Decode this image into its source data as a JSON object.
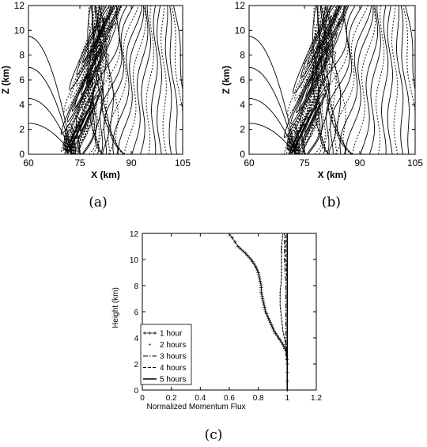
{
  "chart_data": [
    {
      "panel": "a",
      "type": "contour",
      "caption": "(a)",
      "xlabel": "X (km)",
      "ylabel": "Z (km)",
      "xlim": [
        60,
        105
      ],
      "ylim": [
        0,
        12
      ],
      "xticks": [
        "60",
        "75",
        "90",
        "105"
      ],
      "yticks": [
        "0",
        "2",
        "4",
        "6",
        "8",
        "10",
        "12"
      ],
      "xtick_values": [
        60,
        75,
        90,
        105
      ],
      "ytick_values": [
        0,
        2,
        4,
        6,
        8,
        10,
        12
      ],
      "source_x": 72,
      "positive_style": "solid",
      "negative_style": "dashed"
    },
    {
      "panel": "b",
      "type": "contour",
      "caption": "(b)",
      "xlabel": "X (km)",
      "ylabel": "Z (km)",
      "xlim": [
        60,
        105
      ],
      "ylim": [
        0,
        12
      ],
      "xticks": [
        "60",
        "75",
        "90",
        "105"
      ],
      "yticks": [
        "0",
        "2",
        "4",
        "6",
        "8",
        "10",
        "12"
      ],
      "xtick_values": [
        60,
        75,
        90,
        105
      ],
      "ytick_values": [
        0,
        2,
        4,
        6,
        8,
        10,
        12
      ],
      "source_x": 72,
      "positive_style": "solid",
      "negative_style": "dashed"
    },
    {
      "panel": "c",
      "type": "line",
      "caption": "(c)",
      "xlabel": "Normalized Momentum Flux",
      "ylabel": "Height (km)",
      "xlim": [
        0,
        1.2
      ],
      "ylim": [
        0,
        12
      ],
      "xticks": [
        "0",
        "0.2",
        "0.4",
        "0.6",
        "0.8",
        "1",
        "1.2"
      ],
      "yticks": [
        "0",
        "2",
        "4",
        "6",
        "8",
        "10",
        "12"
      ],
      "xtick_values": [
        0,
        0.2,
        0.4,
        0.6,
        0.8,
        1.0,
        1.2
      ],
      "ytick_values": [
        0,
        2,
        4,
        6,
        8,
        10,
        12
      ],
      "legend_position": "bottom-left",
      "series": [
        {
          "name": "1 hour",
          "style": "plus",
          "x": [
            1.0,
            1.0,
            0.99,
            0.97,
            0.94,
            0.91,
            0.89,
            0.87,
            0.85,
            0.84,
            0.83,
            0.82,
            0.82,
            0.81,
            0.8,
            0.78,
            0.75,
            0.71,
            0.66,
            0.6
          ],
          "y": [
            0.0,
            2.0,
            3.0,
            3.5,
            4.0,
            4.5,
            5.0,
            5.5,
            6.0,
            6.5,
            7.0,
            7.5,
            8.0,
            8.5,
            9.0,
            9.5,
            10.0,
            10.5,
            11.0,
            12.0
          ]
        },
        {
          "name": "2 hours",
          "style": "dot",
          "x": [
            1.0,
            1.0,
            0.99,
            0.97,
            0.96,
            0.95,
            0.95,
            0.96,
            0.96,
            0.96,
            0.96,
            0.97
          ],
          "y": [
            0.0,
            2.5,
            3.5,
            4.5,
            5.5,
            6.5,
            7.5,
            8.5,
            9.5,
            10.5,
            11.0,
            12.0
          ]
        },
        {
          "name": "3 hours",
          "style": "dashdot",
          "x": [
            1.0,
            1.0,
            0.99,
            0.99,
            0.99,
            0.99,
            0.99,
            0.99,
            0.98,
            0.98
          ],
          "y": [
            0.0,
            2.0,
            3.0,
            4.0,
            5.0,
            6.0,
            7.0,
            8.0,
            10.0,
            12.0
          ]
        },
        {
          "name": "4 hours",
          "style": "dash",
          "x": [
            1.0,
            1.0,
            1.0,
            1.0,
            1.0,
            0.99,
            0.99,
            0.99
          ],
          "y": [
            0.0,
            2.0,
            4.0,
            6.0,
            8.0,
            10.0,
            11.5,
            12.0
          ]
        },
        {
          "name": "5 hours",
          "style": "solid",
          "x": [
            1.0,
            1.0,
            1.0,
            1.0,
            1.0,
            1.0,
            1.0,
            1.0
          ],
          "y": [
            0.0,
            2.0,
            4.0,
            6.0,
            8.0,
            10.0,
            11.5,
            12.0
          ]
        }
      ]
    }
  ]
}
